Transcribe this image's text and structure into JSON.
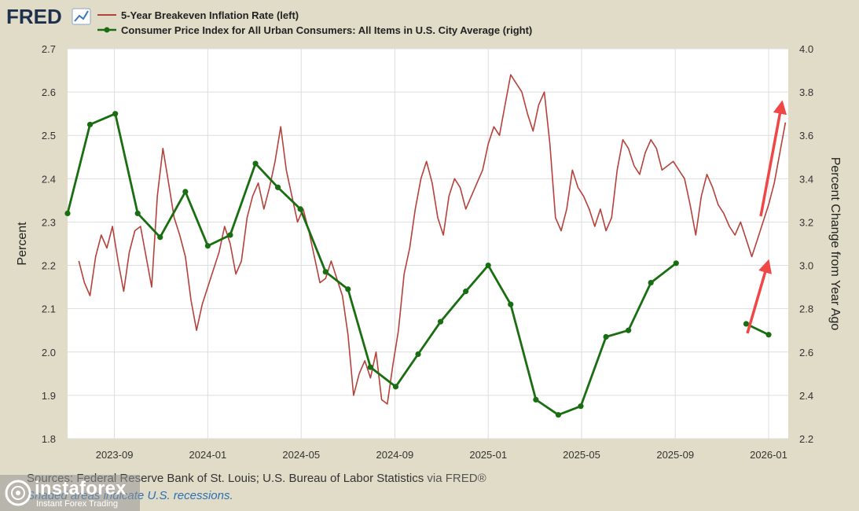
{
  "header": {
    "logo_text": "FRED"
  },
  "chart_data": {
    "type": "line",
    "title": "",
    "x_ticks": [
      "2023-09",
      "2024-01",
      "2024-05",
      "2024-09",
      "2025-01",
      "2025-05",
      "2025-09",
      "2026-01"
    ],
    "left_axis": {
      "label": "Percent",
      "ylim": [
        1.8,
        2.7
      ],
      "ticks": [
        "1.8",
        "1.9",
        "2.0",
        "2.1",
        "2.2",
        "2.3",
        "2.4",
        "2.5",
        "2.6",
        "2.7"
      ]
    },
    "right_axis": {
      "label": "Percent Change from Year Ago",
      "ylim": [
        2.2,
        4.0
      ],
      "ticks": [
        "2.2",
        "2.4",
        "2.6",
        "2.8",
        "3.0",
        "3.2",
        "3.4",
        "3.6",
        "3.8",
        "4.0"
      ]
    },
    "series": [
      {
        "name": "5-Year Breakeven Inflation Rate (left)",
        "axis": "left",
        "color": "#b5413b",
        "x": [
          2023.54,
          2023.56,
          2023.58,
          2023.6,
          2023.62,
          2023.64,
          2023.66,
          2023.68,
          2023.7,
          2023.72,
          2023.74,
          2023.76,
          2023.78,
          2023.8,
          2023.82,
          2023.84,
          2023.86,
          2023.88,
          2023.9,
          2023.92,
          2023.94,
          2023.96,
          2023.98,
          2024.0,
          2024.02,
          2024.04,
          2024.06,
          2024.08,
          2024.1,
          2024.12,
          2024.14,
          2024.16,
          2024.18,
          2024.2,
          2024.22,
          2024.24,
          2024.26,
          2024.28,
          2024.3,
          2024.32,
          2024.34,
          2024.36,
          2024.38,
          2024.4,
          2024.42,
          2024.44,
          2024.46,
          2024.48,
          2024.5,
          2024.52,
          2024.54,
          2024.56,
          2024.58,
          2024.6,
          2024.62,
          2024.64,
          2024.66,
          2024.68,
          2024.7,
          2024.72,
          2024.74,
          2024.76,
          2024.78,
          2024.8,
          2024.82,
          2024.84,
          2024.86,
          2024.88,
          2024.9,
          2024.92,
          2024.94,
          2024.96,
          2024.98,
          2025.0,
          2025.02,
          2025.04,
          2025.06,
          2025.08,
          2025.1,
          2025.12,
          2025.14,
          2025.16,
          2025.18,
          2025.2,
          2025.22,
          2025.24,
          2025.26,
          2025.28,
          2025.3,
          2025.32,
          2025.34,
          2025.36,
          2025.38,
          2025.4,
          2025.42,
          2025.44,
          2025.46,
          2025.48,
          2025.5,
          2025.52,
          2025.54,
          2025.56,
          2025.58,
          2025.6,
          2025.62,
          2025.64,
          2025.66,
          2025.68,
          2025.7,
          2025.72,
          2025.74,
          2025.76,
          2025.78,
          2025.8,
          2025.82,
          2025.84,
          2025.86,
          2025.88,
          2025.9,
          2025.92,
          2025.94,
          2025.96,
          2025.98,
          2026.0,
          2026.02,
          2026.04,
          2026.06
        ],
        "values": [
          2.21,
          2.16,
          2.13,
          2.22,
          2.27,
          2.24,
          2.29,
          2.21,
          2.14,
          2.23,
          2.28,
          2.29,
          2.22,
          2.15,
          2.36,
          2.47,
          2.39,
          2.31,
          2.27,
          2.22,
          2.12,
          2.05,
          2.11,
          2.15,
          2.19,
          2.23,
          2.29,
          2.25,
          2.18,
          2.21,
          2.31,
          2.36,
          2.39,
          2.33,
          2.38,
          2.44,
          2.52,
          2.42,
          2.36,
          2.3,
          2.33,
          2.28,
          2.22,
          2.16,
          2.17,
          2.21,
          2.17,
          2.13,
          2.04,
          1.9,
          1.95,
          1.98,
          1.94,
          2.0,
          1.89,
          1.88,
          1.97,
          2.05,
          2.18,
          2.24,
          2.33,
          2.4,
          2.44,
          2.39,
          2.31,
          2.27,
          2.36,
          2.4,
          2.38,
          2.33,
          2.36,
          2.39,
          2.42,
          2.48,
          2.52,
          2.5,
          2.57,
          2.64,
          2.62,
          2.6,
          2.55,
          2.51,
          2.57,
          2.6,
          2.48,
          2.31,
          2.28,
          2.33,
          2.42,
          2.38,
          2.36,
          2.33,
          2.29,
          2.33,
          2.28,
          2.31,
          2.42,
          2.49,
          2.47,
          2.43,
          2.41,
          2.46,
          2.49,
          2.47,
          2.42,
          2.43,
          2.44,
          2.42,
          2.4,
          2.34,
          2.27,
          2.36,
          2.41,
          2.38,
          2.34,
          2.32,
          2.29,
          2.27,
          2.3,
          2.26,
          2.22,
          2.26,
          2.3,
          2.34,
          2.39,
          2.46,
          2.53
        ]
      },
      {
        "name": "Consumer Price Index for All Urban Consumers: All Items in U.S. City Average (right)",
        "axis": "right",
        "color": "#1a6e12",
        "x": [
          2023.5,
          2023.58,
          2023.67,
          2023.75,
          2023.83,
          2023.92,
          2024.0,
          2024.08,
          2024.17,
          2024.25,
          2024.33,
          2024.42,
          2024.5,
          2024.58,
          2024.67,
          2024.75,
          2024.83,
          2024.92,
          2025.0,
          2025.08,
          2025.17,
          2025.25,
          2025.33,
          2025.42,
          2025.5,
          2025.58,
          2025.67,
          2025.75,
          2025.92,
          2026.0
        ],
        "values": [
          3.24,
          3.65,
          3.7,
          3.24,
          3.13,
          3.34,
          3.09,
          3.14,
          3.47,
          3.36,
          3.26,
          2.97,
          2.89,
          2.53,
          2.44,
          2.59,
          2.74,
          2.88,
          3.0,
          2.82,
          2.38,
          2.31,
          2.35,
          2.67,
          2.7,
          2.92,
          3.01,
          null,
          2.73,
          2.68
        ]
      }
    ],
    "annotations": [
      "red-arrow",
      "red-arrow"
    ]
  },
  "footer": {
    "sources": "Sources: Federal Reserve Bank of St. Louis; U.S. Bureau of Labor Statistics",
    "via": "via FRED®",
    "shaded": "Shaded areas indicate U.S. recessions.",
    "watermark_name": "instaforex",
    "watermark_sub": "Instant Forex Trading"
  }
}
